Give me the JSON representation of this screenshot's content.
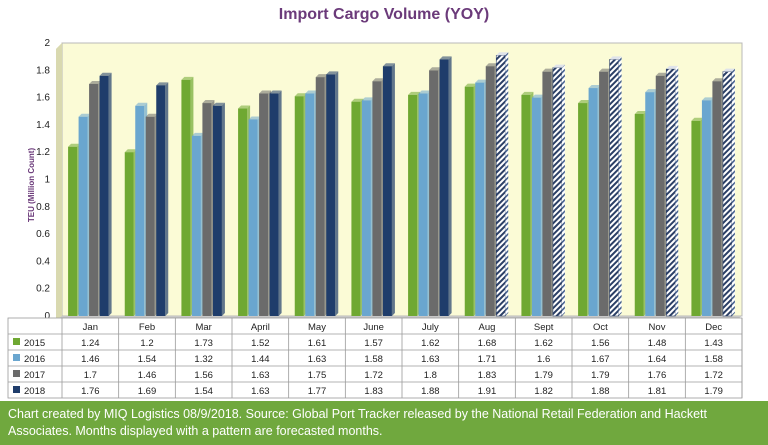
{
  "chart_data": {
    "type": "bar",
    "title": "Import Cargo Volume (YOY)",
    "ylabel": "TEU (Million Count)",
    "xlabel": "",
    "ylim": [
      0,
      2
    ],
    "yticks": [
      "0",
      "0.2",
      "0.4",
      "0.6",
      "0.8",
      "1",
      "1.2",
      "1.4",
      "1.6",
      "1.8",
      "2"
    ],
    "grid": false,
    "legend": "data-table",
    "categories": [
      "Jan",
      "Feb",
      "Mar",
      "April",
      "May",
      "June",
      "July",
      "Aug",
      "Sept",
      "Oct",
      "Nov",
      "Dec"
    ],
    "series": [
      {
        "name": "2015",
        "color": "#6fa832",
        "values": [
          1.24,
          1.2,
          1.73,
          1.52,
          1.61,
          1.57,
          1.62,
          1.68,
          1.62,
          1.56,
          1.48,
          1.43
        ]
      },
      {
        "name": "2016",
        "color": "#6aa6cf",
        "values": [
          1.46,
          1.54,
          1.32,
          1.44,
          1.63,
          1.58,
          1.63,
          1.71,
          1.6,
          1.67,
          1.64,
          1.58
        ]
      },
      {
        "name": "2017",
        "color": "#6b6b6b",
        "values": [
          1.7,
          1.46,
          1.56,
          1.63,
          1.75,
          1.72,
          1.8,
          1.83,
          1.79,
          1.79,
          1.76,
          1.72
        ]
      },
      {
        "name": "2018",
        "color": "#1f3d6b",
        "values": [
          1.76,
          1.69,
          1.54,
          1.63,
          1.77,
          1.83,
          1.88,
          1.91,
          1.82,
          1.88,
          1.81,
          1.79
        ]
      }
    ],
    "forecast_months": [
      "Aug",
      "Sept",
      "Oct",
      "Nov",
      "Dec"
    ],
    "plot_background": "#fbfbd6"
  },
  "footer": {
    "text": "Chart created by MIQ Logistics 08/9/2018. Source: Global Port Tracker released by the National Retail Federation and Hackett Associates. Months displayed with a pattern are forecasted months."
  }
}
